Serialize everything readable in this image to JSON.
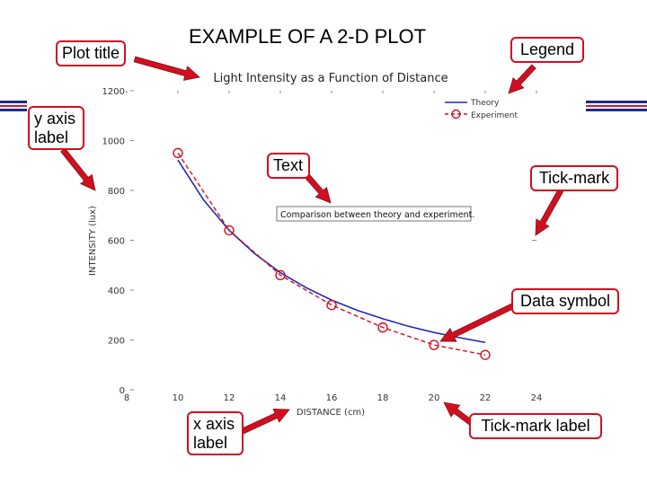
{
  "slide": {
    "title": "EXAMPLE OF A 2-D PLOT"
  },
  "callouts": {
    "plot_title": "Plot title",
    "legend": "Legend",
    "y_axis_label_line1": "y axis",
    "y_axis_label_line2": "label",
    "text": "Text",
    "tick_mark": "Tick-mark",
    "data_symbol": "Data symbol",
    "x_axis_label_line1": "x axis",
    "x_axis_label_line2": "label",
    "tick_mark_label": "Tick-mark label"
  },
  "colors": {
    "callout_border": "#d01020",
    "arrow_fill": "#d01020",
    "theory_line": "#1f2ab8",
    "experiment_line": "#d01020",
    "stripe_blue": "#1f2a8c",
    "stripe_red": "#c81e2a"
  },
  "chart_data": {
    "type": "line",
    "title": "Light Intensity as a Function of Distance",
    "xlabel": "DISTANCE (cm)",
    "ylabel": "INTENSITY (lux)",
    "xlim": [
      8,
      24
    ],
    "ylim": [
      0,
      1200
    ],
    "x_ticks": [
      8,
      10,
      12,
      14,
      16,
      18,
      20,
      22,
      24
    ],
    "y_ticks": [
      0,
      200,
      400,
      600,
      800,
      1000,
      1200
    ],
    "annotation": "Comparison between theory and experiment.",
    "legend_position": "top-right",
    "grid": false,
    "series": [
      {
        "name": "Theory",
        "style": "solid",
        "x": [
          10,
          11,
          12,
          13,
          14,
          15,
          16,
          17,
          18,
          19,
          20,
          21,
          22
        ],
        "y": [
          922,
          762,
          640,
          546,
          470,
          410,
          360,
          319,
          285,
          255,
          230,
          209,
          190
        ]
      },
      {
        "name": "Experiment",
        "style": "dashed-with-circles",
        "x": [
          10,
          12,
          14,
          16,
          18,
          20,
          22
        ],
        "y": [
          950,
          640,
          460,
          340,
          250,
          180,
          140
        ]
      }
    ]
  }
}
